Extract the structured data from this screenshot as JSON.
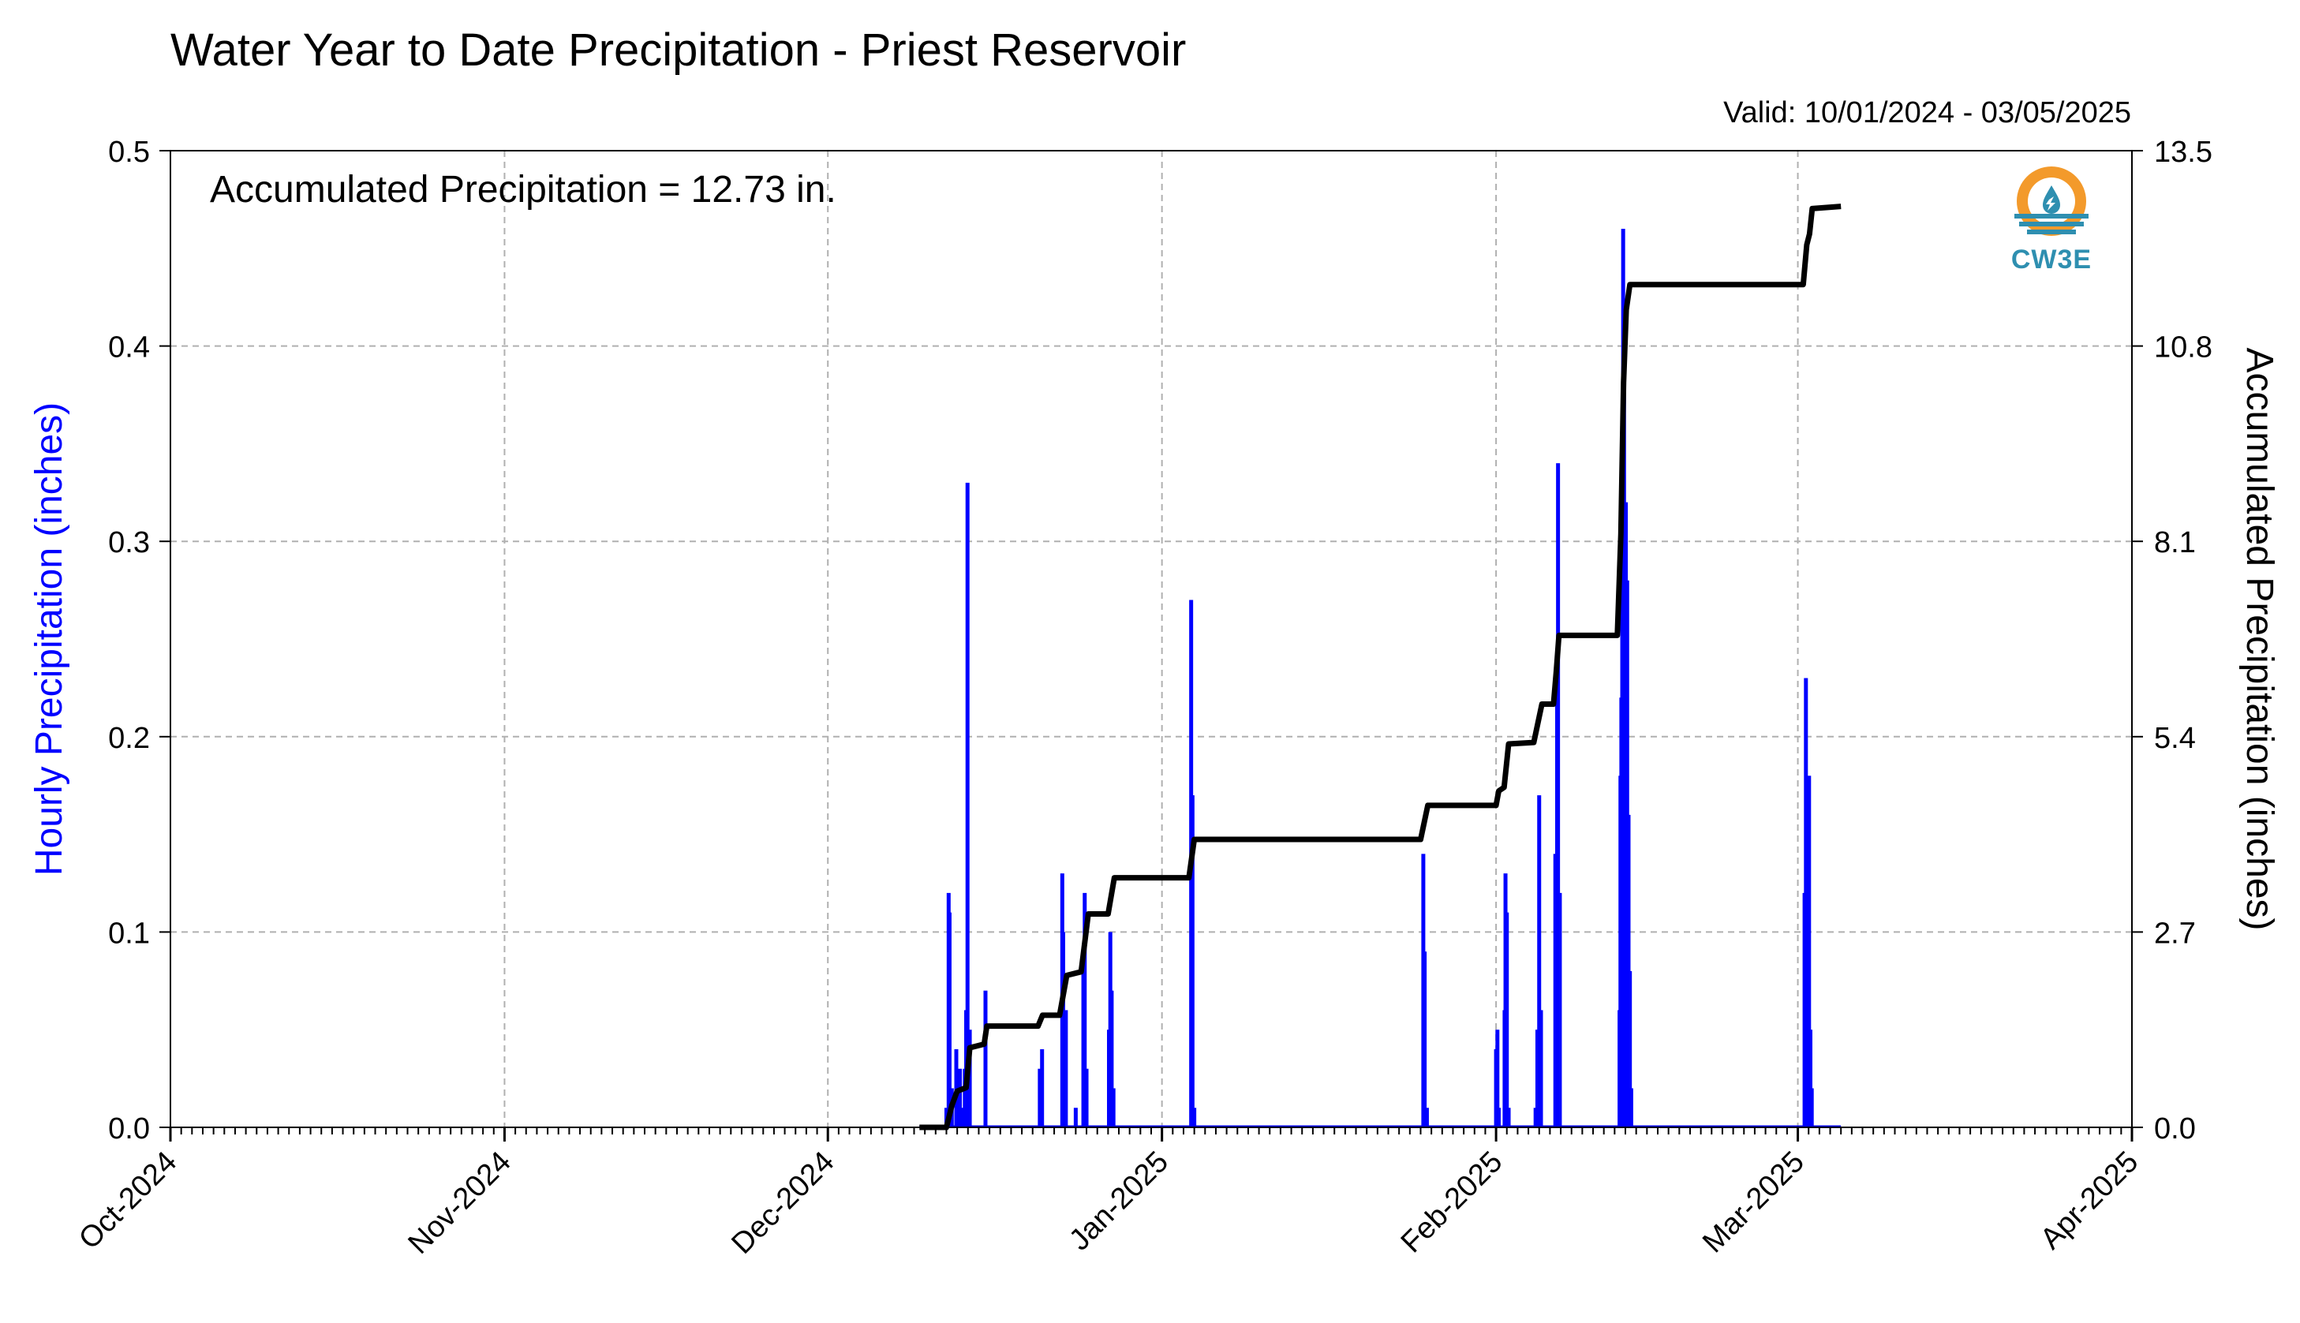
{
  "header": {
    "title": "Water Year to Date Precipitation - Priest Reservoir",
    "valid": "Valid: 10/01/2024 - 03/05/2025"
  },
  "logo": {
    "text": "CW3E",
    "icon": "cw3e-water-drop-icon",
    "colors": {
      "ring": "#f39a2b",
      "drop": "#2e8fb0"
    }
  },
  "chart_data": {
    "type": "bar+line",
    "annotation": "Accumulated Precipitation = 12.73 in.",
    "ylabel_left": "Hourly Precipitation (inches)",
    "ylabel_right": "Accumulated Precipitation (inches)",
    "x_tick_labels": [
      "Oct-2024",
      "Nov-2024",
      "Dec-2024",
      "Jan-2025",
      "Feb-2025",
      "Mar-2025",
      "Apr-2025"
    ],
    "x_tick_dates": [
      "2024-10-01",
      "2024-11-01",
      "2024-12-01",
      "2025-01-01",
      "2025-02-01",
      "2025-03-01",
      "2025-04-01"
    ],
    "xlim": [
      "2024-10-01",
      "2025-04-01"
    ],
    "ylim_left": [
      0,
      0.5
    ],
    "yticks_left": [
      "0.0",
      "0.1",
      "0.2",
      "0.3",
      "0.4",
      "0.5"
    ],
    "ylim_right": [
      0,
      13.5
    ],
    "yticks_right": [
      "0.0",
      "2.7",
      "5.4",
      "8.1",
      "10.8",
      "13.5"
    ],
    "grid": true,
    "colors": {
      "hourly": "#0000ff",
      "accum": "#000000",
      "grid": "#b0b0b0"
    },
    "series": [
      {
        "name": "Hourly Precipitation (inches)",
        "type": "bar",
        "points": [
          [
            "2024-12-12T00",
            0.01
          ],
          [
            "2024-12-12T05",
            0.12
          ],
          [
            "2024-12-12T07",
            0.11
          ],
          [
            "2024-12-12T12",
            0.02
          ],
          [
            "2024-12-12T22",
            0.04
          ],
          [
            "2024-12-13T06",
            0.03
          ],
          [
            "2024-12-13T12",
            0.01
          ],
          [
            "2024-12-13T17",
            0.03
          ],
          [
            "2024-12-13T20",
            0.06
          ],
          [
            "2024-12-13T23",
            0.33
          ],
          [
            "2024-12-14T04",
            0.05
          ],
          [
            "2024-12-15T15",
            0.07
          ],
          [
            "2024-12-20T16",
            0.03
          ],
          [
            "2024-12-20T21",
            0.04
          ],
          [
            "2024-12-22T18",
            0.13
          ],
          [
            "2024-12-22T20",
            0.1
          ],
          [
            "2024-12-23T02",
            0.06
          ],
          [
            "2024-12-24T00",
            0.01
          ],
          [
            "2024-12-24T17",
            0.09
          ],
          [
            "2024-12-24T20",
            0.12
          ],
          [
            "2024-12-25T00",
            0.03
          ],
          [
            "2024-12-27T02",
            0.05
          ],
          [
            "2024-12-27T05",
            0.1
          ],
          [
            "2024-12-27T08",
            0.07
          ],
          [
            "2024-12-27T12",
            0.02
          ],
          [
            "2025-01-03T17",
            0.27
          ],
          [
            "2025-01-03T20",
            0.17
          ],
          [
            "2025-01-04T00",
            0.01
          ],
          [
            "2025-01-25T06",
            0.14
          ],
          [
            "2025-01-25T09",
            0.09
          ],
          [
            "2025-01-25T14",
            0.01
          ],
          [
            "2025-02-01T00",
            0.04
          ],
          [
            "2025-02-01T03",
            0.05
          ],
          [
            "2025-02-01T06",
            0.01
          ],
          [
            "2025-02-01T19",
            0.06
          ],
          [
            "2025-02-01T21",
            0.13
          ],
          [
            "2025-02-02T00",
            0.11
          ],
          [
            "2025-02-02T04",
            0.01
          ],
          [
            "2025-02-04T16",
            0.01
          ],
          [
            "2025-02-04T20",
            0.05
          ],
          [
            "2025-02-05T00",
            0.17
          ],
          [
            "2025-02-05T04",
            0.06
          ],
          [
            "2025-02-06T12",
            0.14
          ],
          [
            "2025-02-06T16",
            0.22
          ],
          [
            "2025-02-06T18",
            0.34
          ],
          [
            "2025-02-06T22",
            0.12
          ],
          [
            "2025-02-12T11",
            0.06
          ],
          [
            "2025-02-12T13",
            0.18
          ],
          [
            "2025-02-12T15",
            0.22
          ],
          [
            "2025-02-12T17",
            0.36
          ],
          [
            "2025-02-12T19",
            0.46
          ],
          [
            "2025-02-12T21",
            0.42
          ],
          [
            "2025-02-13T01",
            0.32
          ],
          [
            "2025-02-13T04",
            0.28
          ],
          [
            "2025-02-13T07",
            0.16
          ],
          [
            "2025-02-13T10",
            0.08
          ],
          [
            "2025-02-13T13",
            0.02
          ],
          [
            "2025-03-01T15",
            0.12
          ],
          [
            "2025-03-01T18",
            0.23
          ],
          [
            "2025-03-01T21",
            0.08
          ],
          [
            "2025-03-02T01",
            0.18
          ],
          [
            "2025-03-02T04",
            0.05
          ],
          [
            "2025-03-02T07",
            0.02
          ]
        ]
      },
      {
        "name": "Accumulated Precipitation (inches)",
        "type": "line",
        "points": [
          [
            "2024-12-09T12",
            0
          ],
          [
            "2024-12-12T00",
            0
          ],
          [
            "2024-12-12T12",
            0.3
          ],
          [
            "2024-12-13T00",
            0.5
          ],
          [
            "2024-12-13T20",
            0.55
          ],
          [
            "2024-12-14T04",
            1.1
          ],
          [
            "2024-12-15T12",
            1.15
          ],
          [
            "2024-12-15T18",
            1.4
          ],
          [
            "2024-12-20T12",
            1.4
          ],
          [
            "2024-12-20T22",
            1.55
          ],
          [
            "2024-12-22T12",
            1.55
          ],
          [
            "2024-12-23T04",
            2.1
          ],
          [
            "2024-12-24T12",
            2.15
          ],
          [
            "2024-12-25T04",
            2.95
          ],
          [
            "2024-12-27T00",
            2.95
          ],
          [
            "2024-12-27T14",
            3.45
          ],
          [
            "2025-01-03T12",
            3.45
          ],
          [
            "2025-01-04T00",
            3.98
          ],
          [
            "2025-01-25T00",
            3.98
          ],
          [
            "2025-01-25T16",
            4.45
          ],
          [
            "2025-02-01T00",
            4.45
          ],
          [
            "2025-02-01T06",
            4.65
          ],
          [
            "2025-02-01T18",
            4.7
          ],
          [
            "2025-02-02T04",
            5.3
          ],
          [
            "2025-02-04T12",
            5.32
          ],
          [
            "2025-02-05T06",
            5.85
          ],
          [
            "2025-02-06T08",
            5.85
          ],
          [
            "2025-02-06T14",
            6.3
          ],
          [
            "2025-02-06T20",
            6.8
          ],
          [
            "2025-02-12T06",
            6.8
          ],
          [
            "2025-02-12T14",
            8.2
          ],
          [
            "2025-02-12T20",
            10.3
          ],
          [
            "2025-02-13T02",
            11.3
          ],
          [
            "2025-02-13T10",
            11.65
          ],
          [
            "2025-03-01T12",
            11.65
          ],
          [
            "2025-03-01T20",
            12.2
          ],
          [
            "2025-03-02T02",
            12.35
          ],
          [
            "2025-03-02T08",
            12.7
          ],
          [
            "2025-03-05T00",
            12.73
          ]
        ]
      }
    ]
  }
}
